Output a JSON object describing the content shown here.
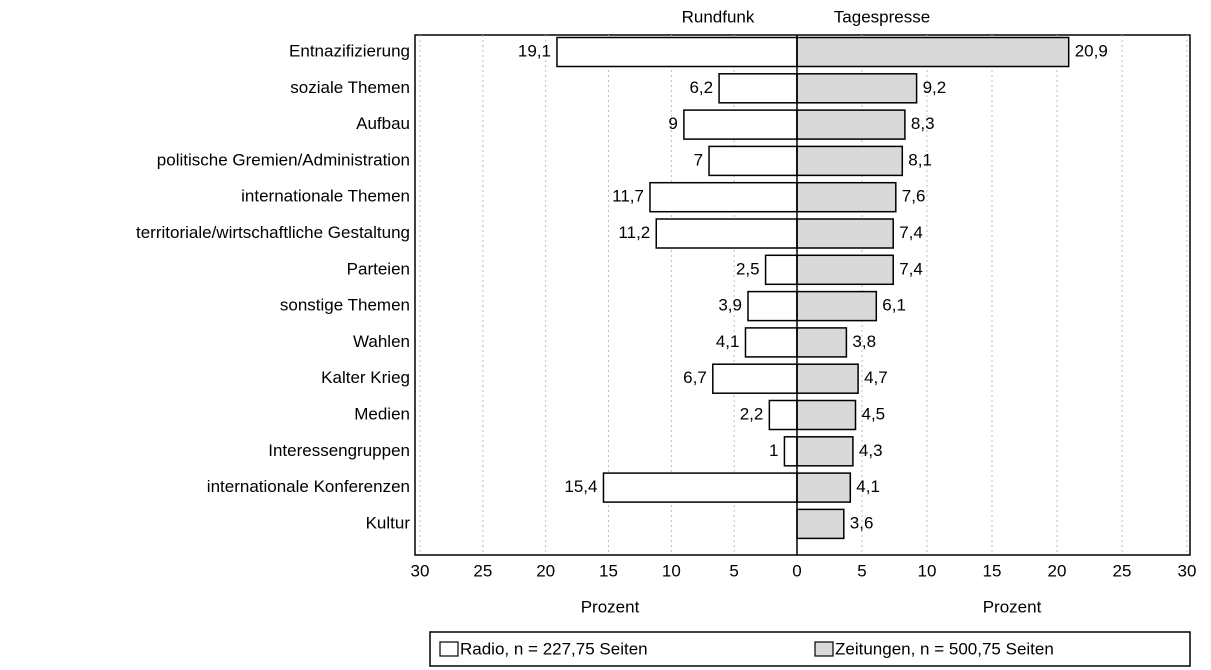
{
  "chart_data": [
    {
      "type": "bar",
      "orientation": "horizontal",
      "title": "Rundfunk",
      "xlabel": "Prozent",
      "categories": [
        "Entnazifizierung",
        "soziale Themen",
        "Aufbau",
        "politische Gremien/Administration",
        "internationale Themen",
        "territoriale/wirtschaftliche Gestaltung",
        "Parteien",
        "sonstige Themen",
        "Wahlen",
        "Kalter Krieg",
        "Medien",
        "Interessengruppen",
        "internationale Konferenzen",
        "Kultur"
      ],
      "series": [
        {
          "name": "Radio, n = 227,75 Seiten",
          "color": "#ffffff",
          "values": [
            19.1,
            6.2,
            9,
            7,
            11.7,
            11.2,
            2.5,
            3.9,
            4.1,
            6.7,
            2.2,
            1,
            15.4,
            null
          ],
          "value_labels": [
            "19,1",
            "6,2",
            "9",
            "7",
            "11,7",
            "11,2",
            "2,5",
            "3,9",
            "4,1",
            "6,7",
            "2,2",
            "1",
            "15,4",
            null
          ]
        }
      ],
      "xlim": [
        30,
        0
      ],
      "xticks": [
        30,
        25,
        20,
        15,
        10,
        5,
        0
      ],
      "grid": true
    },
    {
      "type": "bar",
      "orientation": "horizontal",
      "title": "Tagespresse",
      "xlabel": "Prozent",
      "series": [
        {
          "name": "Zeitungen, n = 500,75 Seiten",
          "color": "#d9d9d9",
          "values": [
            20.9,
            9.2,
            8.3,
            8.1,
            7.6,
            7.4,
            7.4,
            6.1,
            3.8,
            4.7,
            4.5,
            4.3,
            4.1,
            3.6
          ],
          "value_labels": [
            "20,9",
            "9,2",
            "8,3",
            "8,1",
            "7,6",
            "7,4",
            "7,4",
            "6,1",
            "3,8",
            "4,7",
            "4,5",
            "4,3",
            "4,1",
            "3,6"
          ]
        }
      ],
      "xlim": [
        0,
        30
      ],
      "xticks": [
        5,
        10,
        15,
        20,
        25,
        30
      ],
      "grid": true
    }
  ]
}
